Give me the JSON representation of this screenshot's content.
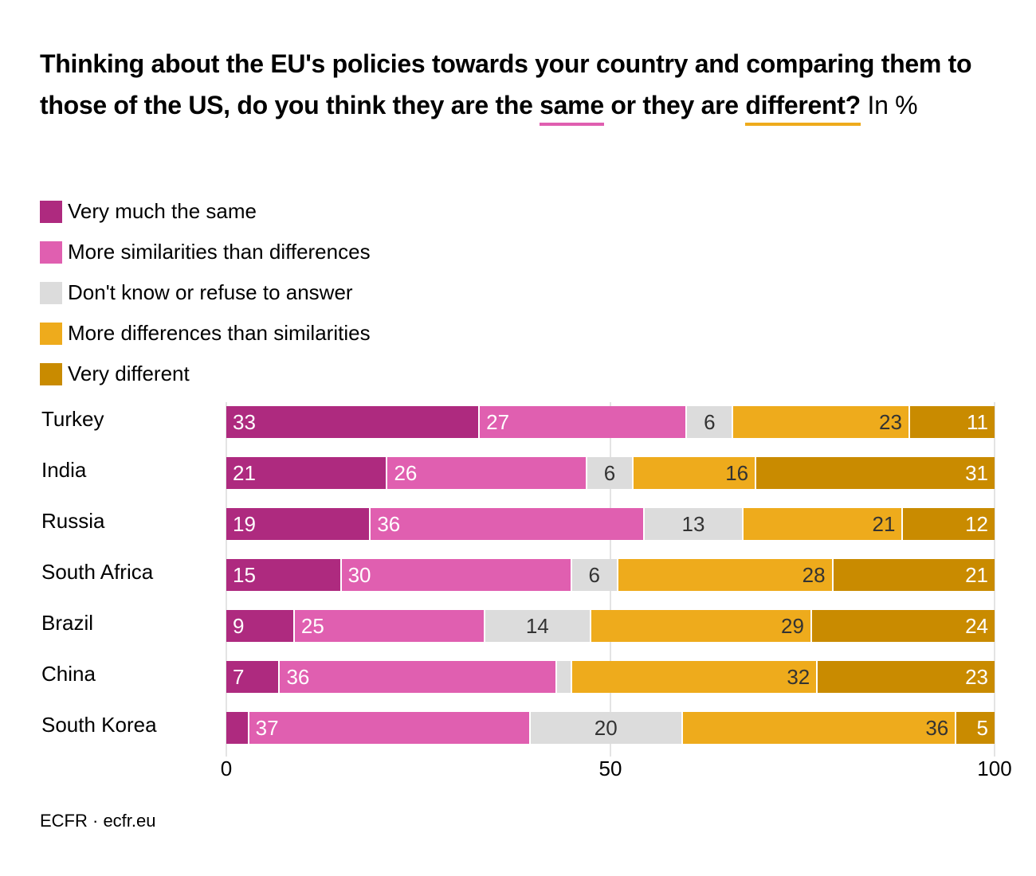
{
  "title": {
    "text_before": "Thinking about the EU's policies towards your country and comparing them to those of the US, do you think they are the ",
    "same": "same",
    "text_middle": " or they are ",
    "different": "different?",
    "suffix": " In %"
  },
  "footer": "ECFR · ecfr.eu",
  "chart_data": {
    "type": "bar",
    "orientation": "horizontal",
    "stacked": true,
    "categories": [
      "Turkey",
      "India",
      "Russia",
      "South Africa",
      "Brazil",
      "China",
      "South Korea"
    ],
    "series": [
      {
        "name": "Very much the same",
        "color": "#ae2a7f",
        "values": [
          33,
          21,
          19,
          15,
          9,
          7,
          3
        ]
      },
      {
        "name": "More similarities than differences",
        "color": "#e05fb0",
        "values": [
          27,
          26,
          36,
          30,
          25,
          36,
          37
        ]
      },
      {
        "name": "Don't know or refuse to answer",
        "color": "#dcdcdc",
        "values": [
          6,
          6,
          13,
          6,
          14,
          2,
          20
        ]
      },
      {
        "name": "More differences than similarities",
        "color": "#eeab1c",
        "values": [
          23,
          16,
          21,
          28,
          29,
          32,
          36
        ]
      },
      {
        "name": "Very different",
        "color": "#c98b00",
        "values": [
          11,
          31,
          12,
          21,
          24,
          23,
          5
        ]
      }
    ],
    "xlim": [
      0,
      100
    ],
    "xticks": [
      "0",
      "50",
      "100"
    ],
    "grid": true,
    "legend": "top-left"
  }
}
